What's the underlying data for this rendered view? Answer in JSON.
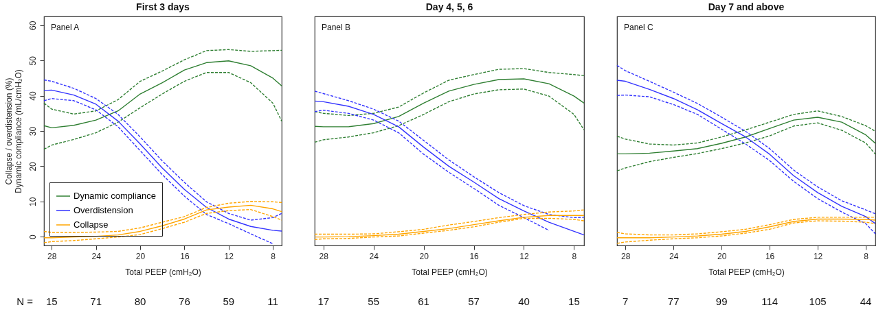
{
  "chart_data": [
    {
      "type": "line",
      "title": "First 3 days",
      "xlabel": "Total PEEP (cmH₂O)",
      "ylabel": "Collapse / overdistension (%)\nDynamic compliance (mL/cmH₂O)",
      "x": [
        28.7,
        28,
        26,
        24,
        22,
        20,
        18,
        16,
        14,
        12,
        10,
        8,
        7.2
      ],
      "xlim": [
        28.7,
        7.2
      ],
      "xticks": [
        28,
        24,
        20,
        16,
        12,
        8
      ],
      "ylim": [
        -2.5,
        62.5
      ],
      "yticks": [
        0,
        10,
        20,
        30,
        40,
        50,
        60
      ],
      "legend": "bottom left",
      "line_style": "solid",
      "series": [
        {
          "name": "Dynamic compliance",
          "color": "#2f7f32",
          "values": [
            31.5,
            30.9,
            31.6,
            33.1,
            35.7,
            40.5,
            43.7,
            47.3,
            49.4,
            49.9,
            48.5,
            45.0,
            42.8
          ]
        },
        {
          "color": "#2f7f32",
          "line_style": "dashed",
          "values": [
            24.8,
            26.0,
            27.6,
            29.5,
            32.5,
            36.6,
            40.5,
            44.1,
            46.6,
            46.6,
            43.7,
            37.9,
            32.8
          ]
        },
        {
          "color": "#2f7f32",
          "line_style": "dashed",
          "values": [
            37.9,
            36.2,
            34.8,
            35.7,
            38.9,
            44.1,
            47.0,
            50.2,
            52.8,
            53.1,
            52.6,
            52.8,
            52.9
          ]
        },
        {
          "name": "Overdistension",
          "color": "#3333ff",
          "values": [
            41.5,
            41.6,
            40.2,
            37.6,
            32.8,
            26.3,
            19.5,
            13.4,
            8.3,
            5.0,
            2.9,
            1.8,
            1.6
          ]
        },
        {
          "color": "#3333ff",
          "line_style": "dashed",
          "values": [
            38.6,
            39.2,
            38.6,
            36.0,
            31.2,
            24.4,
            17.6,
            11.5,
            6.3,
            3.7,
            0.8,
            -2.0,
            null
          ]
        },
        {
          "color": "#3333ff",
          "line_style": "dashed",
          "values": [
            44.5,
            44.1,
            42.1,
            39.2,
            34.7,
            28.3,
            21.5,
            15.4,
            9.9,
            6.6,
            4.7,
            5.4,
            6.6
          ]
        },
        {
          "name": "Collapse",
          "color": "#ffa500",
          "values": [
            -0.3,
            -0.3,
            -0.1,
            0.1,
            0.5,
            1.5,
            3.1,
            5.0,
            7.6,
            8.4,
            8.9,
            7.9,
            7.1
          ]
        },
        {
          "color": "#ffa500",
          "line_style": "dashed",
          "values": [
            -1.7,
            -1.4,
            -1.1,
            -0.6,
            -0.1,
            0.6,
            2.3,
            4.1,
            6.6,
            7.4,
            7.7,
            5.7,
            4.7
          ]
        },
        {
          "color": "#ffa500",
          "line_style": "dashed",
          "values": [
            1.5,
            1.2,
            1.2,
            1.3,
            1.5,
            2.5,
            4.1,
            5.7,
            8.3,
            9.5,
            10.0,
            9.9,
            9.7
          ]
        }
      ],
      "annotations": [
        "Panel A",
        "N =",
        "15",
        "71",
        "80",
        "76",
        "59",
        "11"
      ]
    },
    {
      "type": "line",
      "title": "Day 4, 5, 6",
      "xlabel": "Total PEEP (cmH₂O)",
      "tick_labels": "x",
      "x": [
        28.7,
        28,
        26,
        24,
        22,
        20,
        18,
        16,
        14,
        12,
        10,
        8,
        7.2
      ],
      "xlim": [
        28.7,
        7.2
      ],
      "xticks": [
        28,
        24,
        20,
        16,
        12,
        8
      ],
      "ylim": [
        -2.5,
        62.5
      ],
      "yticks": [
        0,
        10,
        20,
        30,
        40,
        50,
        60
      ],
      "line_style": "solid",
      "series": [
        {
          "color": "#2f7f32",
          "values": [
            31.3,
            31.2,
            31.2,
            32.1,
            34.1,
            37.9,
            41.3,
            43.2,
            44.6,
            44.8,
            43.4,
            39.9,
            37.9
          ]
        },
        {
          "color": "#2f7f32",
          "line_style": "dashed",
          "values": [
            26.8,
            27.5,
            28.3,
            29.5,
            31.5,
            34.7,
            38.3,
            40.5,
            41.7,
            41.9,
            39.9,
            34.7,
            30.3
          ]
        },
        {
          "color": "#2f7f32",
          "line_style": "dashed",
          "values": [
            35.5,
            35.0,
            34.4,
            35.0,
            36.8,
            40.8,
            44.4,
            46.0,
            47.5,
            47.7,
            46.6,
            46.0,
            45.7
          ]
        },
        {
          "color": "#3333ff",
          "values": [
            38.5,
            38.3,
            37.0,
            34.7,
            31.2,
            25.4,
            20.0,
            15.5,
            10.8,
            7.3,
            4.1,
            1.5,
            0.5
          ]
        },
        {
          "color": "#3333ff",
          "line_style": "dashed",
          "values": [
            35.5,
            35.9,
            35.0,
            33.1,
            29.5,
            23.4,
            18.3,
            13.7,
            8.9,
            5.4,
            1.8,
            null,
            null
          ]
        },
        {
          "color": "#3333ff",
          "line_style": "dashed",
          "values": [
            41.3,
            40.6,
            38.6,
            36.2,
            32.8,
            27.3,
            21.8,
            17.0,
            12.5,
            8.8,
            6.3,
            5.4,
            5.5
          ]
        },
        {
          "color": "#ffa500",
          "values": [
            -0.1,
            -0.1,
            0.0,
            0.3,
            0.7,
            1.5,
            2.3,
            3.4,
            4.5,
            5.5,
            6.0,
            6.0,
            6.0
          ]
        },
        {
          "color": "#ffa500",
          "line_style": "dashed",
          "values": [
            -0.8,
            -0.6,
            -0.5,
            -0.1,
            0.2,
            1.0,
            1.8,
            2.8,
            4.1,
            5.2,
            5.2,
            4.9,
            4.5
          ]
        },
        {
          "color": "#ffa500",
          "line_style": "dashed",
          "values": [
            0.7,
            0.7,
            0.7,
            0.8,
            1.4,
            2.1,
            3.3,
            4.3,
            5.4,
            6.3,
            7.0,
            7.3,
            7.6
          ]
        }
      ],
      "annotations": [
        "Panel B",
        "17",
        "55",
        "61",
        "57",
        "40",
        "15"
      ]
    },
    {
      "type": "line",
      "title": "Day 7 and above",
      "xlabel": "Total PEEP (cmH₂O)",
      "tick_labels": "x",
      "x": [
        28.7,
        28,
        26,
        24,
        22,
        20,
        18,
        16,
        14,
        12,
        10,
        8,
        7.2
      ],
      "xlim": [
        28.7,
        7.2
      ],
      "xticks": [
        28,
        24,
        20,
        16,
        12,
        8
      ],
      "ylim": [
        -2.5,
        62.5
      ],
      "yticks": [
        0,
        10,
        20,
        30,
        40,
        50,
        60
      ],
      "line_style": "solid",
      "series": [
        {
          "color": "#2f7f32",
          "values": [
            23.5,
            23.5,
            23.7,
            24.3,
            25.0,
            26.5,
            28.3,
            30.7,
            33.1,
            33.9,
            32.5,
            28.9,
            26.5
          ]
        },
        {
          "color": "#2f7f32",
          "line_style": "dashed",
          "values": [
            18.7,
            19.5,
            21.3,
            22.5,
            23.6,
            25.0,
            26.6,
            28.6,
            31.4,
            32.3,
            30.2,
            26.6,
            23.4
          ]
        },
        {
          "color": "#2f7f32",
          "line_style": "dashed",
          "values": [
            28.5,
            27.7,
            26.3,
            26.0,
            26.6,
            28.3,
            30.3,
            32.5,
            34.7,
            35.7,
            34.1,
            31.5,
            29.9
          ]
        },
        {
          "color": "#3333ff",
          "values": [
            44.4,
            44.1,
            41.8,
            39.2,
            36.0,
            32.1,
            28.3,
            23.4,
            17.3,
            12.5,
            8.6,
            5.7,
            3.7
          ]
        },
        {
          "color": "#3333ff",
          "line_style": "dashed",
          "values": [
            40.1,
            40.2,
            39.7,
            37.5,
            34.7,
            30.5,
            26.3,
            21.6,
            15.7,
            10.8,
            7.0,
            3.7,
            0.8
          ]
        },
        {
          "color": "#3333ff",
          "line_style": "dashed",
          "values": [
            48.6,
            47.1,
            44.1,
            41.0,
            37.8,
            33.9,
            29.9,
            25.0,
            18.9,
            14.1,
            10.2,
            7.6,
            6.5
          ]
        },
        {
          "color": "#ffa500",
          "values": [
            -0.3,
            -0.3,
            -0.3,
            -0.1,
            0.2,
            0.7,
            1.5,
            2.8,
            4.3,
            5.0,
            5.0,
            4.9,
            4.7
          ]
        },
        {
          "color": "#ffa500",
          "line_style": "dashed",
          "values": [
            -1.9,
            -1.5,
            -1.0,
            -0.6,
            -0.3,
            0.2,
            1.0,
            2.1,
            3.9,
            4.5,
            4.4,
            4.1,
            3.7
          ]
        },
        {
          "color": "#ffa500",
          "line_style": "dashed",
          "values": [
            1.2,
            0.8,
            0.5,
            0.5,
            0.8,
            1.4,
            2.1,
            3.4,
            4.9,
            5.5,
            5.5,
            5.5,
            5.5
          ]
        }
      ],
      "annotations": [
        "Panel C",
        "7",
        "77",
        "99",
        "114",
        "105",
        "44"
      ]
    }
  ]
}
